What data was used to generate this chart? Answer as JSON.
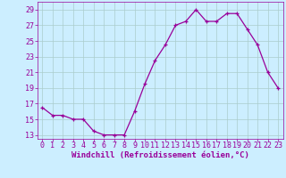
{
  "x": [
    0,
    1,
    2,
    3,
    4,
    5,
    6,
    7,
    8,
    9,
    10,
    11,
    12,
    13,
    14,
    15,
    16,
    17,
    18,
    19,
    20,
    21,
    22,
    23
  ],
  "y": [
    16.5,
    15.5,
    15.5,
    15,
    15,
    13.5,
    13,
    13,
    13,
    16,
    19.5,
    22.5,
    24.5,
    27,
    27.5,
    29,
    27.5,
    27.5,
    28.5,
    28.5,
    26.5,
    24.5,
    21,
    19
  ],
  "line_color": "#990099",
  "marker": "+",
  "bg_color": "#cceeff",
  "grid_color": "#aacccc",
  "xlabel": "Windchill (Refroidissement éolien,°C)",
  "xlabel_color": "#990099",
  "ytick_labels": [
    "13",
    "15",
    "17",
    "19",
    "21",
    "23",
    "25",
    "27",
    "29"
  ],
  "ytick_vals": [
    13,
    15,
    17,
    19,
    21,
    23,
    25,
    27,
    29
  ],
  "xtick_vals": [
    0,
    1,
    2,
    3,
    4,
    5,
    6,
    7,
    8,
    9,
    10,
    11,
    12,
    13,
    14,
    15,
    16,
    17,
    18,
    19,
    20,
    21,
    22,
    23
  ],
  "ylim": [
    12.5,
    30.0
  ],
  "xlim": [
    -0.5,
    23.5
  ],
  "tick_color": "#990099",
  "axis_label_fontsize": 6.5,
  "tick_fontsize": 6.0
}
